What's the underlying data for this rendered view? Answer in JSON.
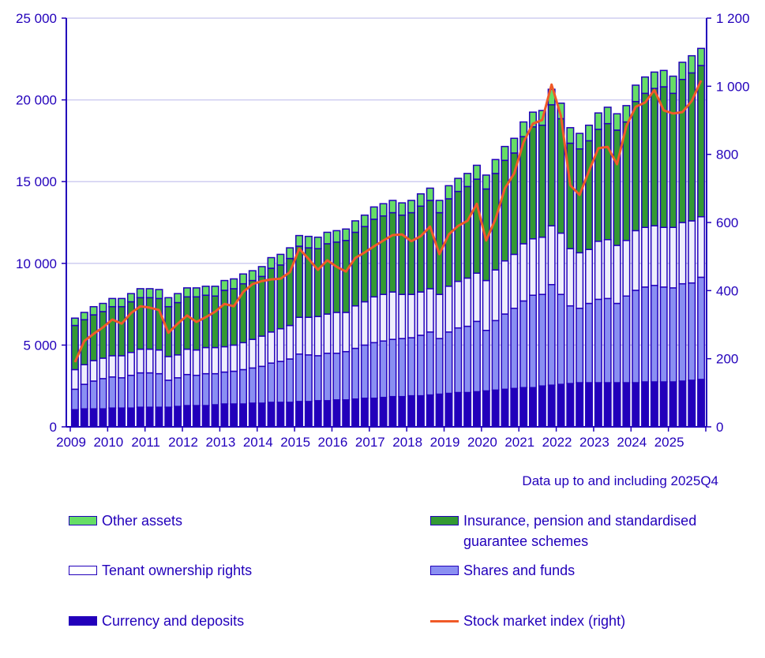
{
  "chart_data": {
    "type": "bar",
    "stacked": true,
    "categories": [
      "2009Q1",
      "2009Q2",
      "2009Q3",
      "2009Q4",
      "2010Q1",
      "2010Q2",
      "2010Q3",
      "2010Q4",
      "2011Q1",
      "2011Q2",
      "2011Q3",
      "2011Q4",
      "2012Q1",
      "2012Q2",
      "2012Q3",
      "2012Q4",
      "2013Q1",
      "2013Q2",
      "2013Q3",
      "2013Q4",
      "2014Q1",
      "2014Q2",
      "2014Q3",
      "2014Q4",
      "2015Q1",
      "2015Q2",
      "2015Q3",
      "2015Q4",
      "2016Q1",
      "2016Q2",
      "2016Q3",
      "2016Q4",
      "2017Q1",
      "2017Q2",
      "2017Q3",
      "2017Q4",
      "2018Q1",
      "2018Q2",
      "2018Q3",
      "2018Q4",
      "2019Q1",
      "2019Q2",
      "2019Q3",
      "2019Q4",
      "2020Q1",
      "2020Q2",
      "2020Q3",
      "2020Q4",
      "2021Q1",
      "2021Q2",
      "2021Q3",
      "2021Q4",
      "2022Q1",
      "2022Q2",
      "2022Q3",
      "2022Q4",
      "2023Q1",
      "2023Q2",
      "2023Q3",
      "2023Q4",
      "2024Q1",
      "2024Q2",
      "2024Q3",
      "2024Q4",
      "2025Q1",
      "2025Q2",
      "2025Q3",
      "2025Q4"
    ],
    "x_tick_labels": [
      "2009",
      "2010",
      "2011",
      "2012",
      "2013",
      "2014",
      "2015",
      "2016",
      "2017",
      "2018",
      "2019",
      "2020",
      "2021",
      "2022",
      "2023",
      "2024",
      "2025"
    ],
    "ylim": [
      0,
      25000
    ],
    "y_ticks": [
      "0",
      "5 000",
      "10 000",
      "15 000",
      "20 000",
      "25 000"
    ],
    "y2lim": [
      0,
      1200
    ],
    "y2_ticks": [
      "0",
      "200",
      "400",
      "600",
      "800",
      "1 000",
      "1 200"
    ],
    "grid": true,
    "legend_position": "bottom",
    "note": "Data up to and including 2025Q4",
    "series": [
      {
        "name": "Currency and deposits",
        "color": "#2200bb",
        "values": [
          1050,
          1100,
          1100,
          1100,
          1150,
          1150,
          1150,
          1200,
          1200,
          1200,
          1200,
          1250,
          1300,
          1300,
          1300,
          1350,
          1400,
          1400,
          1400,
          1450,
          1450,
          1500,
          1500,
          1500,
          1550,
          1550,
          1600,
          1600,
          1650,
          1650,
          1700,
          1750,
          1750,
          1800,
          1850,
          1850,
          1900,
          1900,
          1950,
          2000,
          2050,
          2100,
          2100,
          2150,
          2200,
          2250,
          2300,
          2350,
          2400,
          2400,
          2500,
          2550,
          2600,
          2650,
          2700,
          2700,
          2700,
          2700,
          2700,
          2700,
          2700,
          2750,
          2750,
          2750,
          2750,
          2800,
          2850,
          2900
        ]
      },
      {
        "name": "Shares and funds",
        "color": "#8a8ff2",
        "values": [
          1250,
          1500,
          1700,
          1850,
          1900,
          1850,
          2000,
          2100,
          2100,
          2050,
          1650,
          1750,
          1900,
          1850,
          1950,
          1900,
          1950,
          2000,
          2100,
          2150,
          2250,
          2400,
          2500,
          2650,
          2900,
          2850,
          2750,
          2900,
          2850,
          2950,
          3100,
          3250,
          3400,
          3450,
          3500,
          3550,
          3550,
          3700,
          3850,
          3400,
          3750,
          3950,
          4050,
          4300,
          3700,
          4250,
          4600,
          4900,
          5300,
          5650,
          5600,
          6150,
          5500,
          4750,
          4550,
          4850,
          5100,
          5150,
          4850,
          5300,
          5650,
          5800,
          5900,
          5800,
          5750,
          5950,
          5950,
          6250
        ]
      },
      {
        "name": "Tenant ownership rights",
        "color": "#eeeefc",
        "values": [
          1200,
          1200,
          1250,
          1250,
          1300,
          1350,
          1400,
          1450,
          1450,
          1450,
          1450,
          1400,
          1550,
          1550,
          1600,
          1600,
          1550,
          1600,
          1650,
          1750,
          1850,
          1900,
          2000,
          2050,
          2250,
          2300,
          2400,
          2400,
          2500,
          2400,
          2600,
          2650,
          2800,
          2850,
          2900,
          2700,
          2650,
          2650,
          2650,
          2700,
          2800,
          2850,
          2950,
          2950,
          3050,
          3100,
          3250,
          3300,
          3500,
          3450,
          3500,
          3600,
          3750,
          3500,
          3400,
          3300,
          3550,
          3600,
          3550,
          3400,
          3650,
          3650,
          3650,
          3650,
          3700,
          3750,
          3800,
          3700
        ]
      },
      {
        "name": "Insurance, pension and standardised guarantee schemes",
        "color": "#339933",
        "values": [
          2700,
          2750,
          2800,
          2850,
          3000,
          3000,
          3100,
          3150,
          3150,
          3150,
          3050,
          3200,
          3200,
          3250,
          3200,
          3150,
          3450,
          3450,
          3600,
          3600,
          3650,
          3900,
          3900,
          4100,
          4350,
          4250,
          4150,
          4300,
          4300,
          4400,
          4500,
          4600,
          4750,
          4800,
          4850,
          4850,
          5000,
          5250,
          5400,
          5000,
          5350,
          5500,
          5600,
          5750,
          5600,
          5900,
          6150,
          6200,
          6550,
          6850,
          6850,
          7400,
          7000,
          6450,
          6350,
          6650,
          6850,
          7100,
          7050,
          7250,
          7900,
          8200,
          8400,
          8600,
          8200,
          8750,
          9050,
          9250
        ]
      },
      {
        "name": "Other assets",
        "color": "#66dd66",
        "values": [
          450,
          450,
          500,
          500,
          500,
          500,
          500,
          550,
          550,
          550,
          550,
          550,
          550,
          550,
          550,
          600,
          600,
          600,
          600,
          600,
          600,
          650,
          650,
          650,
          650,
          700,
          700,
          700,
          700,
          700,
          700,
          700,
          750,
          750,
          750,
          750,
          750,
          750,
          750,
          750,
          800,
          800,
          800,
          850,
          850,
          850,
          850,
          900,
          900,
          900,
          900,
          950,
          950,
          950,
          950,
          950,
          1000,
          1000,
          1000,
          1000,
          1000,
          1000,
          1000,
          1000,
          1050,
          1050,
          1050,
          1050
        ]
      }
    ],
    "line_series": {
      "name": "Stock market index (right)",
      "color": "#f05a28",
      "axis": "right",
      "values": [
        190,
        252,
        273,
        292,
        315,
        303,
        334,
        354,
        350,
        343,
        276,
        303,
        327,
        308,
        322,
        338,
        361,
        354,
        396,
        419,
        428,
        433,
        435,
        454,
        523,
        493,
        461,
        489,
        470,
        456,
        496,
        512,
        530,
        547,
        563,
        565,
        545,
        560,
        588,
        507,
        565,
        590,
        605,
        655,
        547,
        610,
        700,
        744,
        836,
        890,
        901,
        1005,
        913,
        709,
        681,
        751,
        818,
        822,
        771,
        883,
        940,
        952,
        989,
        929,
        920,
        924,
        957,
        1017
      ]
    }
  },
  "legend": [
    {
      "label": "Other assets",
      "color": "#66dd66",
      "kind": "bar"
    },
    {
      "label": "Insurance, pension and standardised guarantee schemes",
      "color": "#339933",
      "kind": "bar"
    },
    {
      "label": "Tenant ownership rights",
      "color": "#eeeefc",
      "kind": "bar"
    },
    {
      "label": "Shares and funds",
      "color": "#8a8ff2",
      "kind": "bar"
    },
    {
      "label": "Currency and deposits",
      "color": "#2200bb",
      "kind": "bar"
    },
    {
      "label": "Stock market index (right)",
      "color": "#f05a28",
      "kind": "line"
    }
  ]
}
